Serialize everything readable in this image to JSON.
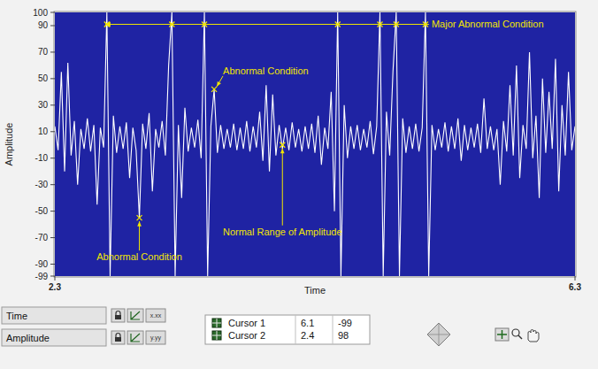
{
  "chart_data": {
    "type": "line",
    "x_label": "Time",
    "y_label": "Amplitude",
    "color": "#ffffff",
    "background": "#1f23a3",
    "xlim": [
      2.3,
      6.3
    ],
    "ylim": [
      -99,
      100
    ],
    "xticks": [
      2.3,
      6.3
    ],
    "yticks": [
      100,
      90,
      70,
      50,
      30,
      10,
      -10,
      -30,
      -50,
      -70,
      -90,
      -99
    ],
    "grid": false,
    "x": [
      2.3,
      2.325,
      2.35,
      2.375,
      2.4,
      2.425,
      2.45,
      2.475,
      2.5,
      2.525,
      2.55,
      2.575,
      2.6,
      2.625,
      2.65,
      2.675,
      2.7,
      2.725,
      2.75,
      2.775,
      2.8,
      2.825,
      2.85,
      2.875,
      2.9,
      2.925,
      2.95,
      2.975,
      3,
      3.025,
      3.05,
      3.075,
      3.1,
      3.125,
      3.15,
      3.175,
      3.2,
      3.225,
      3.25,
      3.275,
      3.3,
      3.325,
      3.35,
      3.375,
      3.4,
      3.425,
      3.45,
      3.475,
      3.5,
      3.525,
      3.55,
      3.575,
      3.6,
      3.625,
      3.65,
      3.675,
      3.7,
      3.725,
      3.75,
      3.775,
      3.8,
      3.825,
      3.85,
      3.875,
      3.9,
      3.925,
      3.95,
      3.975,
      4,
      4.025,
      4.05,
      4.075,
      4.1,
      4.125,
      4.15,
      4.175,
      4.2,
      4.225,
      4.25,
      4.275,
      4.3,
      4.325,
      4.35,
      4.375,
      4.4,
      4.425,
      4.45,
      4.475,
      4.5,
      4.525,
      4.55,
      4.575,
      4.6,
      4.625,
      4.65,
      4.675,
      4.7,
      4.725,
      4.75,
      4.775,
      4.8,
      4.825,
      4.85,
      4.875,
      4.9,
      4.925,
      4.95,
      4.975,
      5,
      5.025,
      5.05,
      5.075,
      5.1,
      5.125,
      5.15,
      5.175,
      5.2,
      5.225,
      5.25,
      5.275,
      5.3,
      5.325,
      5.35,
      5.375,
      5.4,
      5.425,
      5.45,
      5.475,
      5.5,
      5.525,
      5.55,
      5.575,
      5.6,
      5.625,
      5.65,
      5.675,
      5.7,
      5.725,
      5.75,
      5.775,
      5.8,
      5.825,
      5.85,
      5.875,
      5.9,
      5.925,
      5.95,
      5.975,
      6,
      6.025,
      6.05,
      6.075,
      6.1,
      6.125,
      6.15,
      6.175,
      6.2,
      6.225,
      6.25,
      6.275,
      6.3
    ],
    "values": [
      14,
      -4,
      55,
      -20,
      62,
      -8,
      18,
      -30,
      12,
      -3,
      20,
      -5,
      15,
      -45,
      13,
      -2,
      100,
      -99,
      22,
      -6,
      14,
      -3,
      17,
      -25,
      13,
      -4,
      -55,
      16,
      -3,
      24,
      -35,
      12,
      -2,
      18,
      -8,
      60,
      100,
      -99,
      15,
      -40,
      28,
      -5,
      13,
      -2,
      19,
      -10,
      100,
      -99,
      14,
      42,
      -6,
      15,
      -3,
      12,
      -2,
      16,
      -4,
      13,
      -3,
      18,
      -5,
      14,
      -2,
      25,
      -12,
      45,
      -20,
      38,
      -8,
      15,
      -3,
      13,
      -4,
      17,
      -2,
      12,
      -5,
      14,
      -3,
      16,
      -6,
      22,
      -15,
      13,
      -3,
      40,
      -50,
      100,
      -99,
      30,
      -10,
      14,
      -3,
      15,
      -4,
      12,
      -2,
      18,
      -7,
      14,
      100,
      -99,
      25,
      -8,
      55,
      100,
      -99,
      20,
      -6,
      14,
      -3,
      16,
      -5,
      13,
      100,
      -99,
      15,
      -4,
      12,
      -2,
      17,
      -5,
      14,
      -3,
      20,
      -12,
      15,
      -4,
      13,
      -2,
      16,
      -6,
      35,
      -3,
      14,
      -4,
      12,
      -30,
      18,
      -5,
      45,
      -8,
      60,
      -25,
      15,
      -3,
      70,
      -10,
      22,
      -40,
      50,
      -6,
      40,
      -3,
      65,
      -35,
      30,
      -8,
      55,
      -4,
      14
    ],
    "annotations": [
      {
        "text": "Major Abnormal Condition",
        "x": [
          2.7,
          3.2,
          3.45,
          4.475,
          4.8,
          4.925,
          5.15
        ],
        "y": 91
      },
      {
        "text": "Abnormal Condition",
        "x": 3.525,
        "y": 42
      },
      {
        "text": "Abnormal Condition",
        "x": 2.95,
        "y": -55
      },
      {
        "text": "Normal Range of Amplitude",
        "x": 4.05,
        "y": 0
      }
    ],
    "scale_legend": {
      "names": [
        "Time",
        "Amplitude"
      ],
      "formats": [
        "x.xx",
        "y.yy"
      ]
    },
    "cursors": [
      {
        "name": "Cursor 1",
        "x": 6.1,
        "y": -99
      },
      {
        "name": "Cursor 2",
        "x": 2.4,
        "y": 98
      }
    ]
  }
}
